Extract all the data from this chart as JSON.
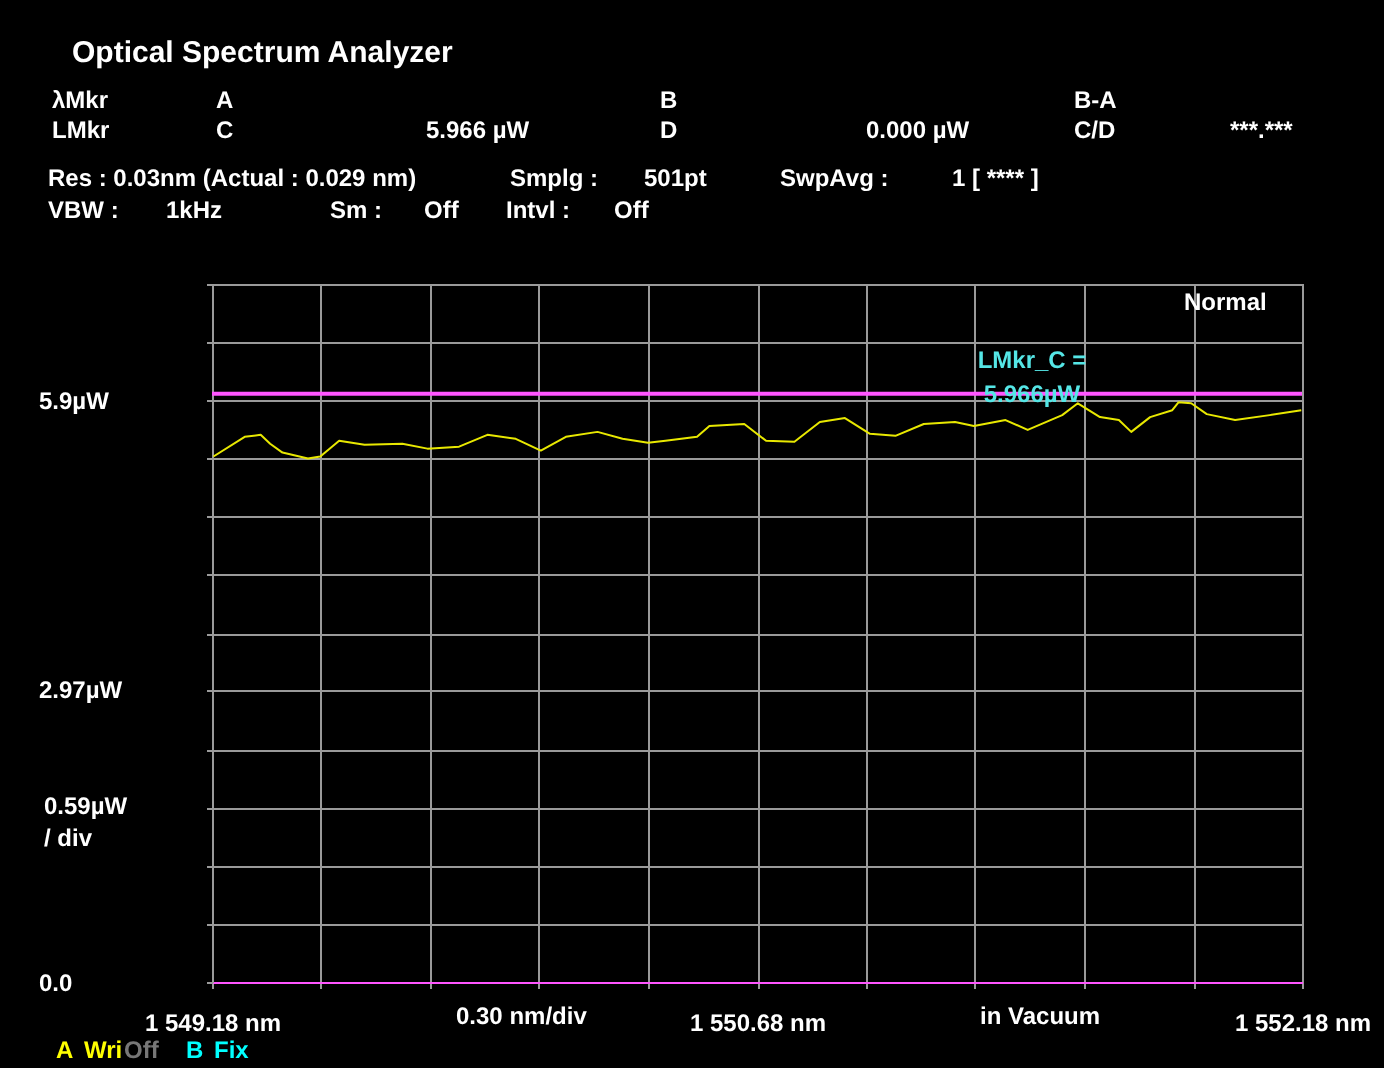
{
  "chart_data": {
    "type": "line",
    "title": "Optical Spectrum Analyzer",
    "x": [
      1549.184,
      1549.27,
      1549.314,
      1549.34,
      1549.374,
      1549.444,
      1549.478,
      1549.53,
      1549.6,
      1549.704,
      1549.773,
      1549.86,
      1549.938,
      1550.016,
      1550.085,
      1550.154,
      1550.241,
      1550.31,
      1550.38,
      1550.428,
      1550.515,
      1550.549,
      1550.645,
      1550.705,
      1550.783,
      1550.853,
      1550.922,
      1550.991,
      1551.061,
      1551.139,
      1551.225,
      1551.277,
      1551.364,
      1551.425,
      1551.52,
      1551.563,
      1551.624,
      1551.676,
      1551.71,
      1551.762,
      1551.823,
      1551.84,
      1551.875,
      1551.918,
      1551.996,
      1552.091,
      1552.178
    ],
    "series": [
      {
        "color": "#e8e800",
        "values": [
          5.33,
          5.53,
          5.55,
          5.46,
          5.37,
          5.31,
          5.33,
          5.49,
          5.45,
          5.46,
          5.41,
          5.43,
          5.55,
          5.51,
          5.39,
          5.53,
          5.58,
          5.51,
          5.47,
          5.49,
          5.53,
          5.64,
          5.66,
          5.49,
          5.48,
          5.68,
          5.72,
          5.56,
          5.54,
          5.66,
          5.68,
          5.64,
          5.7,
          5.6,
          5.75,
          5.87,
          5.73,
          5.7,
          5.58,
          5.73,
          5.8,
          5.88,
          5.87,
          5.76,
          5.7,
          5.75,
          5.8
        ]
      }
    ],
    "xlim": [
      1549.18,
      1552.18
    ],
    "xticks": [
      {
        "value": 1549.18,
        "label": "1 549.18 nm"
      },
      {
        "value": 1549.48,
        "label": null
      },
      {
        "value": 1549.78,
        "label": null
      },
      {
        "value": 1550.08,
        "label": null
      },
      {
        "value": 1550.38,
        "label": null
      },
      {
        "value": 1550.68,
        "label": "1 550.68 nm"
      },
      {
        "value": 1550.98,
        "label": null
      },
      {
        "value": 1551.28,
        "label": null
      },
      {
        "value": 1551.58,
        "label": null
      },
      {
        "value": 1551.88,
        "label": null
      },
      {
        "value": 1552.18,
        "label": "1 552.18 nm"
      }
    ],
    "ylim": [
      0,
      7.08
    ],
    "yticks": [
      {
        "value": 0,
        "label": "0.0"
      },
      {
        "value": 0.59,
        "label": null
      },
      {
        "value": 1.18,
        "label": null
      },
      {
        "value": 1.77,
        "label": null
      },
      {
        "value": 2.36,
        "label": null
      },
      {
        "value": 2.97,
        "label": "2.97µW"
      },
      {
        "value": 3.54,
        "label": null
      },
      {
        "value": 4.13,
        "label": null
      },
      {
        "value": 4.72,
        "label": null
      },
      {
        "value": 5.31,
        "label": null
      },
      {
        "value": 5.9,
        "label": "5.9µW"
      },
      {
        "value": 6.49,
        "label": null
      },
      {
        "value": 7.08,
        "label": null
      }
    ],
    "grid": true,
    "ylabel": "0.59µW\n/ div",
    "xlabel": "0.30 nm/div",
    "ref_lines": [
      {
        "axis": "y",
        "value": 5.966,
        "label": "LMkr_C =\n5.966µW",
        "color": "#ff55ff"
      }
    ],
    "annotations": [
      "λMkr",
      "A",
      "B",
      "B-A",
      "LMkr",
      "C",
      "5.966  µW",
      "D",
      "0.000  µW",
      "C/D",
      "***.***",
      "Res :  0.03nm (Actual :  0.029 nm)",
      "Smplg :",
      "501pt",
      "SwpAvg :",
      "1 [   ****  ]",
      "VBW :",
      "1kHz",
      "Sm :",
      "Off",
      "Intvl :",
      "Off",
      "Normal",
      "in Vacuum",
      "A",
      "Wri",
      "Off",
      "B",
      "Fix"
    ]
  }
}
